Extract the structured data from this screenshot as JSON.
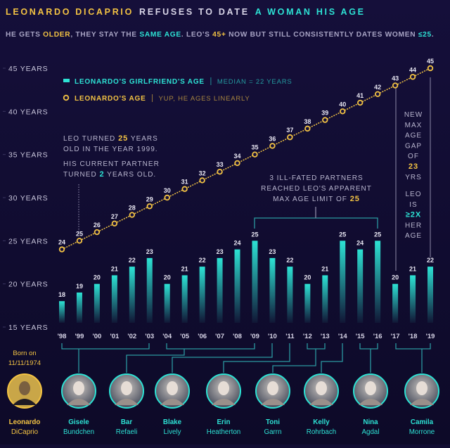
{
  "title": [
    "LEONARDO DICAPRIO",
    "REFUSES TO DATE",
    "A WOMAN HIS AGE"
  ],
  "subtitle": [
    "HE GETS ",
    "OLDER",
    ", THEY STAY THE ",
    "SAME AGE",
    ". LEO'S ",
    "45+",
    " NOW BUT STILL CONSISTENTLY DATES WOMEN ",
    "≤25",
    "."
  ],
  "chart_data": {
    "type": "combo",
    "categories": [
      "'98",
      "'99",
      "'00",
      "'01",
      "'02",
      "'03",
      "'04",
      "'05",
      "'06",
      "'07",
      "'08",
      "'09",
      "'10",
      "'11",
      "'12",
      "'13",
      "'14",
      "'15",
      "'16",
      "'17",
      "'18",
      "'19"
    ],
    "series": [
      {
        "name": "LEONARDO'S GIRLFRIEND'S AGE",
        "note": "MEDIAN = 22 YEARS",
        "type": "bar",
        "color": "#2de2d4",
        "values": [
          18,
          19,
          20,
          21,
          22,
          23,
          20,
          21,
          22,
          23,
          24,
          25,
          23,
          22,
          20,
          21,
          25,
          24,
          25,
          20,
          21,
          22
        ]
      },
      {
        "name": "LEONARDO'S AGE",
        "note": "YUP, HE AGES LINEARLY",
        "type": "line",
        "color": "#f3c343",
        "values": [
          24,
          25,
          26,
          27,
          28,
          29,
          30,
          31,
          32,
          33,
          34,
          35,
          36,
          37,
          38,
          39,
          40,
          41,
          42,
          43,
          44,
          45
        ]
      }
    ],
    "ylim": [
      15,
      45
    ],
    "yticks": [
      {
        "value": 15,
        "label": "15 YEARS"
      },
      {
        "value": 20,
        "label": "20 YEARS"
      },
      {
        "value": 25,
        "label": "25 YEARS"
      },
      {
        "value": 30,
        "label": "30 YEARS"
      },
      {
        "value": 35,
        "label": "35 YEARS"
      },
      {
        "value": 40,
        "label": "40 YEARS"
      },
      {
        "value": 45,
        "label": "45 YEARS"
      }
    ],
    "annotations": [
      {
        "lines": [
          [
            "LEO TURNED ",
            "25",
            " YEARS"
          ],
          [
            "OLD IN THE YEAR 1999."
          ]
        ]
      },
      {
        "lines": [
          [
            "HIS CURRENT PARTNER"
          ],
          [
            "TURNED ",
            "2",
            " YEARS OLD."
          ]
        ]
      },
      {
        "lines": [
          [
            "3 ILL-FATED PARTNERS"
          ],
          [
            "REACHED LEO'S APPARENT"
          ],
          [
            "MAX AGE LIMIT OF ",
            "25"
          ]
        ]
      },
      {
        "lines": [
          [
            "NEW"
          ],
          [
            "MAX"
          ],
          [
            "AGE"
          ],
          [
            "GAP"
          ],
          [
            "OF"
          ],
          [
            "23"
          ],
          [
            "YRS"
          ]
        ]
      },
      {
        "lines": [
          [
            "LEO"
          ],
          [
            "IS"
          ],
          [
            "≥2X"
          ],
          [
            "HER"
          ],
          [
            "AGE"
          ]
        ]
      }
    ]
  },
  "people": {
    "born": [
      "Born on",
      "11/11/1974"
    ],
    "list": [
      {
        "name": [
          "Leonardo",
          "DiCaprio"
        ]
      },
      {
        "name": [
          "Gisele",
          "Bundchen"
        ]
      },
      {
        "name": [
          "Bar",
          "Refaeli"
        ]
      },
      {
        "name": [
          "Blake",
          "Lively"
        ]
      },
      {
        "name": [
          "Erin",
          "Heatherton"
        ]
      },
      {
        "name": [
          "Toni",
          "Garrn"
        ]
      },
      {
        "name": [
          "Kelly",
          "Rohrbach"
        ]
      },
      {
        "name": [
          "Nina",
          "Agdal"
        ]
      },
      {
        "name": [
          "Camila",
          "Morrone"
        ]
      }
    ]
  }
}
